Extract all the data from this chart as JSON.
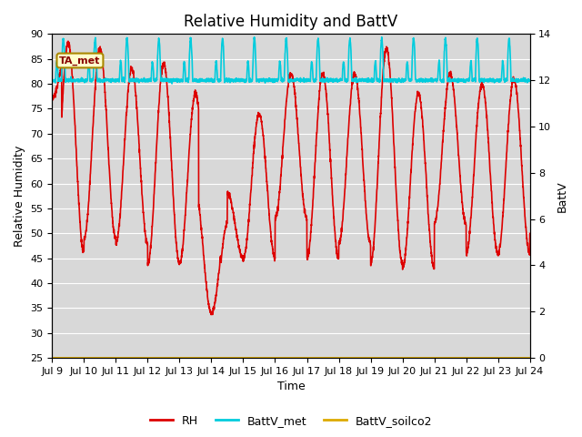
{
  "title": "Relative Humidity and BattV",
  "ylabel_left": "Relative Humidity",
  "ylabel_right": "BattV",
  "xlabel": "Time",
  "ylim_left": [
    25,
    90
  ],
  "ylim_right": [
    0,
    14
  ],
  "yticks_left": [
    25,
    30,
    35,
    40,
    45,
    50,
    55,
    60,
    65,
    70,
    75,
    80,
    85,
    90
  ],
  "yticks_right": [
    0,
    2,
    4,
    6,
    8,
    10,
    12,
    14
  ],
  "xtick_positions": [
    0,
    1,
    2,
    3,
    4,
    5,
    6,
    7,
    8,
    9,
    10,
    11,
    12,
    13,
    14,
    15
  ],
  "xtick_labels": [
    "Jul 9",
    "Jul 10",
    "Jul 11",
    "Jul 12",
    "Jul 13",
    "Jul 14",
    "Jul 15",
    "Jul 16",
    "Jul 17",
    "Jul 18",
    "Jul 19",
    "Jul 20",
    "Jul 21",
    "Jul 22",
    "Jul 23",
    "Jul 24"
  ],
  "rh_color": "#dd0000",
  "battv_met_color": "#00ccdd",
  "battv_soilco2_color": "#ddaa00",
  "annotation_text": "TA_met",
  "annotation_bg": "#ffffcc",
  "annotation_border": "#aa8800",
  "plot_bg_color": "#d8d8d8",
  "grid_color": "#ffffff",
  "fig_bg_color": "#ffffff",
  "title_fontsize": 12,
  "axis_label_fontsize": 9,
  "tick_fontsize": 8,
  "linewidth": 1.2
}
